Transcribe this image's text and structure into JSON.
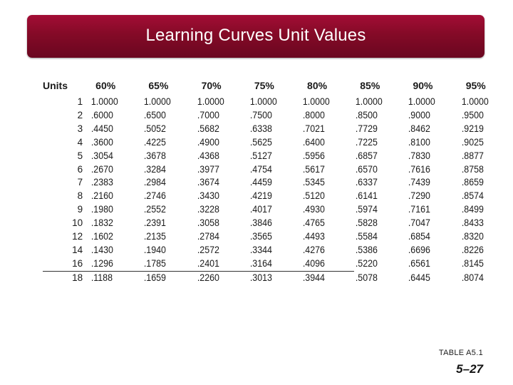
{
  "slide": {
    "title": "Learning Curves Unit Values",
    "table_label": "TABLE A5.1",
    "page_number": "5–27"
  },
  "table": {
    "headers": [
      "Units",
      "60%",
      "65%",
      "70%",
      "75%",
      "80%",
      "85%",
      "90%",
      "95%"
    ],
    "rows": [
      [
        "1",
        "1.0000",
        "1.0000",
        "1.0000",
        "1.0000",
        "1.0000",
        "1.0000",
        "1.0000",
        "1.0000"
      ],
      [
        "2",
        ".6000",
        ".6500",
        ".7000",
        ".7500",
        ".8000",
        ".8500",
        ".9000",
        ".9500"
      ],
      [
        "3",
        ".4450",
        ".5052",
        ".5682",
        ".6338",
        ".7021",
        ".7729",
        ".8462",
        ".9219"
      ],
      [
        "4",
        ".3600",
        ".4225",
        ".4900",
        ".5625",
        ".6400",
        ".7225",
        ".8100",
        ".9025"
      ],
      [
        "5",
        ".3054",
        ".3678",
        ".4368",
        ".5127",
        ".5956",
        ".6857",
        ".7830",
        ".8877"
      ],
      [
        "6",
        ".2670",
        ".3284",
        ".3977",
        ".4754",
        ".5617",
        ".6570",
        ".7616",
        ".8758"
      ],
      [
        "7",
        ".2383",
        ".2984",
        ".3674",
        ".4459",
        ".5345",
        ".6337",
        ".7439",
        ".8659"
      ],
      [
        "8",
        ".2160",
        ".2746",
        ".3430",
        ".4219",
        ".5120",
        ".6141",
        ".7290",
        ".8574"
      ],
      [
        "9",
        ".1980",
        ".2552",
        ".3228",
        ".4017",
        ".4930",
        ".5974",
        ".7161",
        ".8499"
      ],
      [
        "10",
        ".1832",
        ".2391",
        ".3058",
        ".3846",
        ".4765",
        ".5828",
        ".7047",
        ".8433"
      ],
      [
        "12",
        ".1602",
        ".2135",
        ".2784",
        ".3565",
        ".4493",
        ".5584",
        ".6854",
        ".8320"
      ],
      [
        "14",
        ".1430",
        ".1940",
        ".2572",
        ".3344",
        ".4276",
        ".5386",
        ".6696",
        ".8226"
      ],
      [
        "16",
        ".1296",
        ".1785",
        ".2401",
        ".3164",
        ".4096",
        ".5220",
        ".6561",
        ".8145"
      ],
      [
        "18",
        ".1188",
        ".1659",
        ".2260",
        ".3013",
        ".3944",
        ".5078",
        ".6445",
        ".8074"
      ]
    ]
  }
}
